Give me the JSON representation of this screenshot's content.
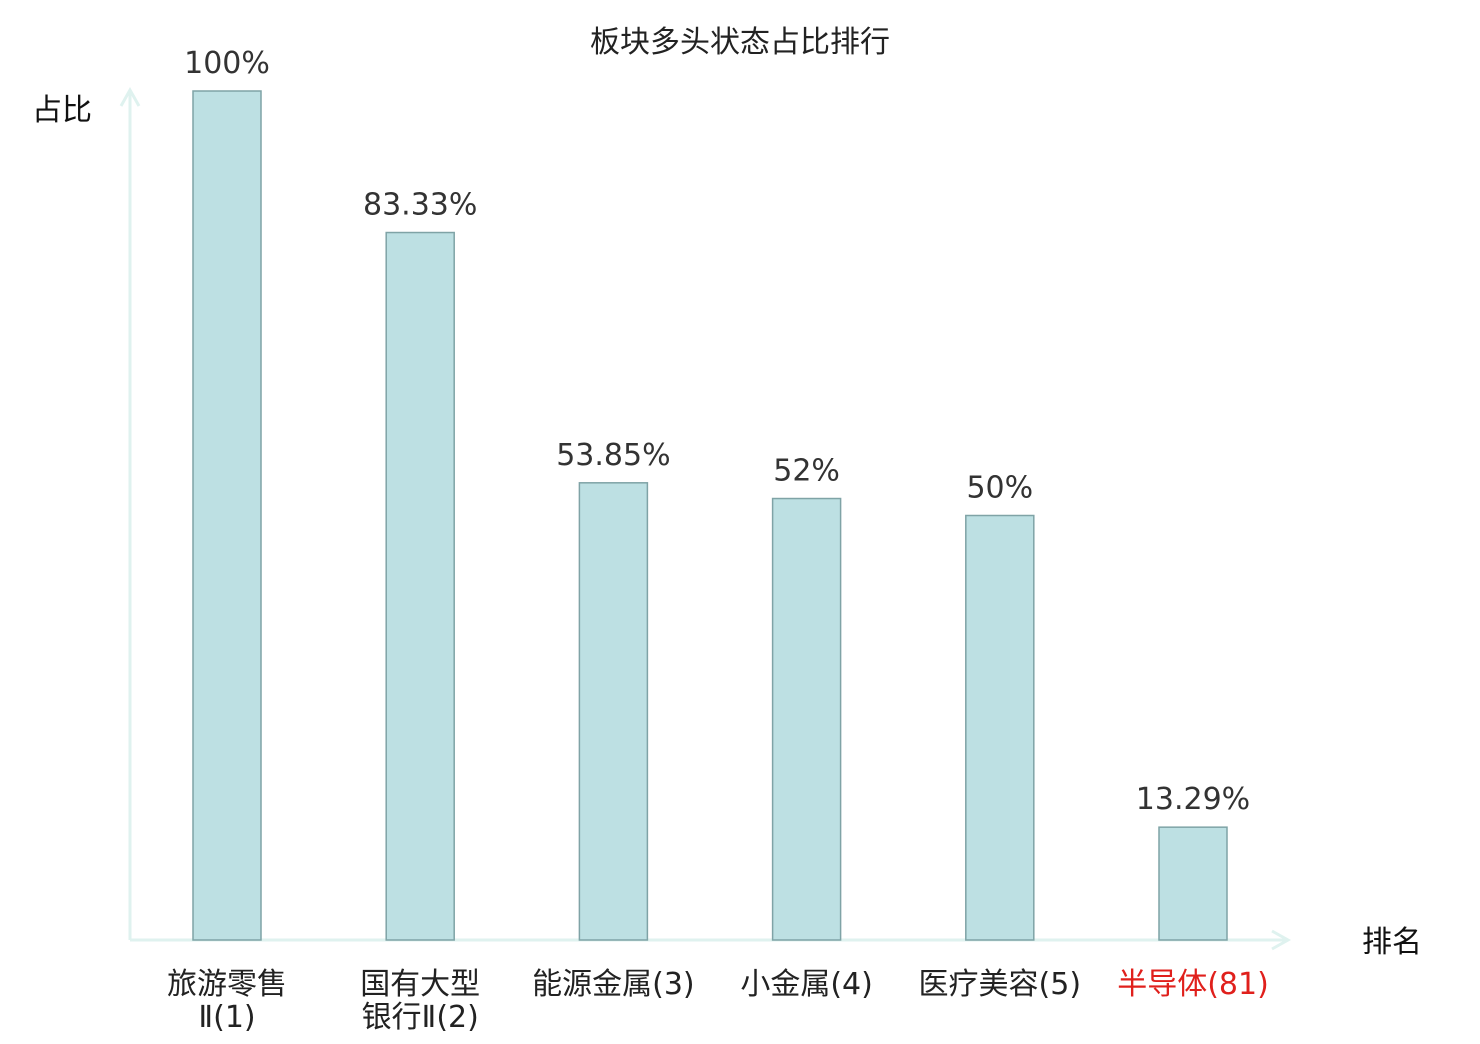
{
  "chart_data": {
    "type": "bar",
    "title": "板块多头状态占比排行",
    "xlabel": "排名",
    "ylabel": "占比",
    "ylim": [
      0,
      100
    ],
    "grid": false,
    "legend": "none",
    "categories": [
      {
        "lines": [
          "旅游零售",
          "Ⅱ(1)"
        ],
        "highlight": false
      },
      {
        "lines": [
          "国有大型",
          "银行Ⅱ(2)"
        ],
        "highlight": false
      },
      {
        "lines": [
          "能源金属(3)"
        ],
        "highlight": false
      },
      {
        "lines": [
          "小金属(4)"
        ],
        "highlight": false
      },
      {
        "lines": [
          "医疗美容(5)"
        ],
        "highlight": false
      },
      {
        "lines": [
          "半导体(81)"
        ],
        "highlight": true
      }
    ],
    "values": [
      100,
      83.33,
      53.85,
      52,
      50,
      13.29
    ],
    "value_labels": [
      "100%",
      "83.33%",
      "53.85%",
      "52%",
      "50%",
      "13.29%"
    ]
  },
  "colors": {
    "bar_fill": "#bde0e3",
    "bar_stroke": "#7fa3a6",
    "axis": "#dff2ef",
    "text": "#222222",
    "value_text": "#333333",
    "highlight": "#e0201c"
  }
}
